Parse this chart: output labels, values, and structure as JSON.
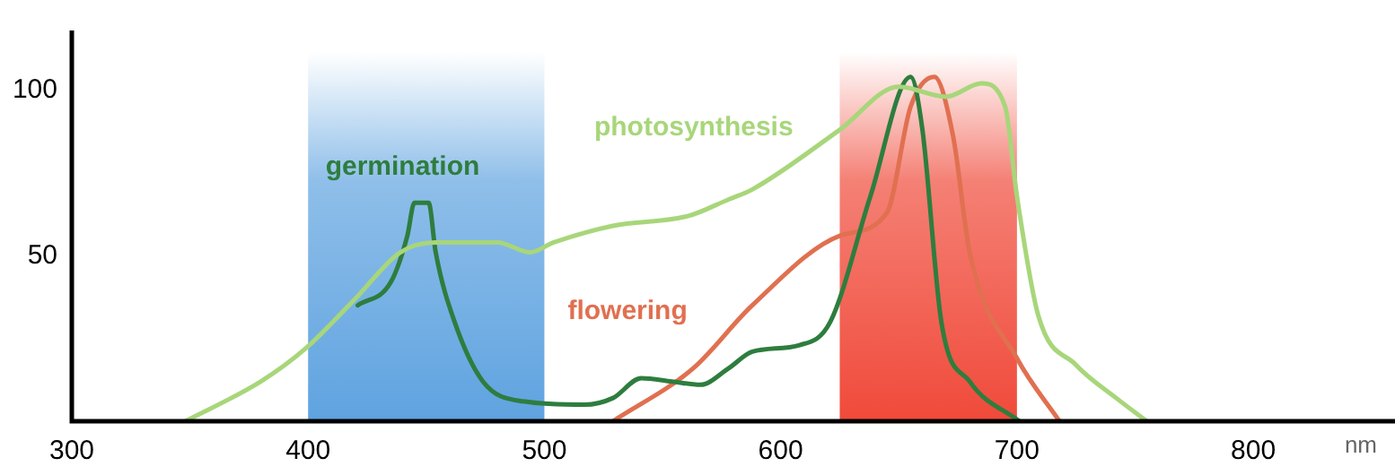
{
  "chart_data": {
    "type": "line",
    "xlabel": "nm",
    "xlim": [
      300,
      860
    ],
    "xticks": [
      300,
      400,
      500,
      600,
      700,
      800
    ],
    "ylim": [
      0,
      118
    ],
    "yticks": [
      50,
      100
    ],
    "grid": false,
    "legend": false,
    "marker": "none",
    "line_style": "solid",
    "bands": [
      {
        "axis": "x",
        "from": 400,
        "to": 500,
        "color": "#5fa3e0"
      },
      {
        "axis": "x",
        "from": 625,
        "to": 700,
        "color": "#f04a3a"
      }
    ],
    "series": [
      {
        "name": "photosynthesis",
        "color": "#a8d67a",
        "x": [
          348,
          380,
          399,
          420,
          439,
          454,
          480,
          494,
          504,
          529,
          561,
          578,
          588,
          625,
          650,
          670,
          685,
          695,
          700,
          709,
          725,
          742,
          755
        ],
        "values": [
          0,
          12,
          22,
          37,
          51,
          54,
          54,
          51,
          54,
          59,
          62,
          67,
          70,
          88,
          101,
          98,
          102,
          95,
          68,
          32,
          17,
          7,
          0
        ]
      },
      {
        "name": "germination",
        "color": "#2e7d3e",
        "x": [
          421,
          435,
          442,
          445,
          451,
          454,
          462,
          474,
          491,
          517,
          529,
          541,
          554,
          566,
          578,
          588,
          608,
          621,
          638,
          655,
          660,
          668,
          680,
          701
        ],
        "values": [
          35,
          42,
          56,
          66,
          66,
          51,
          30,
          12,
          6,
          5,
          7,
          13,
          12,
          11,
          16,
          21,
          23,
          30,
          68,
          104,
          88,
          30,
          12,
          0
        ]
      },
      {
        "name": "flowering",
        "color": "#e07050",
        "x": [
          529,
          563,
          588,
          625,
          645,
          655,
          665,
          673,
          680,
          700,
          718
        ],
        "values": [
          0,
          16,
          35,
          56,
          63,
          95,
          104,
          86,
          51,
          19,
          0
        ]
      }
    ]
  }
}
